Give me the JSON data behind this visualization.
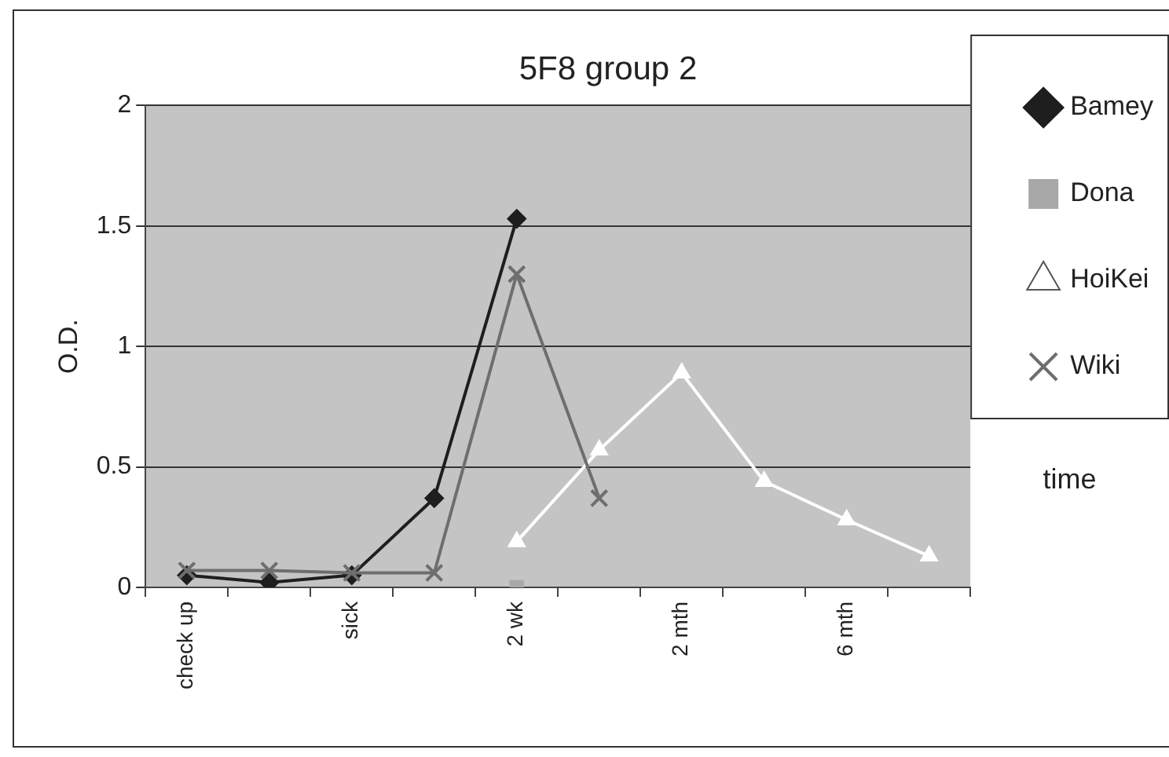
{
  "chart_data": {
    "type": "line",
    "title": "5F8 group 2",
    "xlabel": "time",
    "ylabel": "O.D.",
    "categories": [
      "check up",
      null,
      "sick",
      null,
      "2 wk",
      null,
      "2 mth",
      null,
      "6 mth",
      null
    ],
    "series": [
      {
        "name": "Bamey",
        "color": "#1e1e1e",
        "marker": "diamond",
        "values": [
          0.05,
          0.02,
          0.05,
          0.37,
          1.53,
          null,
          null,
          null,
          null,
          null
        ]
      },
      {
        "name": "Dona",
        "color": "#a8a8a8",
        "marker": "square",
        "values": [
          null,
          null,
          null,
          null,
          0.0,
          null,
          null,
          null,
          null,
          null
        ]
      },
      {
        "name": "HoiKei",
        "color": "#ffffff",
        "marker": "triangle",
        "values": [
          null,
          null,
          null,
          null,
          0.19,
          0.57,
          0.89,
          0.44,
          0.28,
          0.13
        ]
      },
      {
        "name": "Wiki",
        "color": "#6e6e6e",
        "marker": "cross",
        "values": [
          0.07,
          0.07,
          0.06,
          0.06,
          1.3,
          0.37,
          null,
          null,
          null,
          null
        ]
      }
    ],
    "ylim": [
      0,
      2
    ],
    "yticks": [
      0,
      0.5,
      1,
      1.5,
      2
    ],
    "grid": "y",
    "legend": "right",
    "line_style": "solid"
  }
}
